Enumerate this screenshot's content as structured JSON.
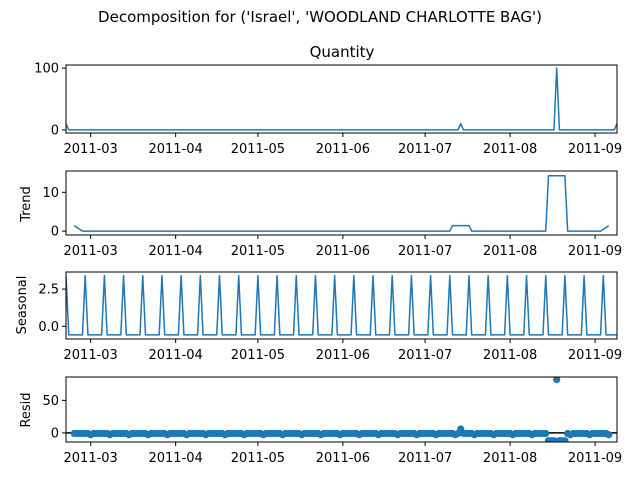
{
  "figure": {
    "suptitle": "Decomposition for ('Israel', 'WOODLAND CHARLOTTE BAG')"
  },
  "colors": {
    "series": "#1f77b4",
    "zero_line": "#000000"
  },
  "x_axis": {
    "start_date": "2011-02-20",
    "end_date": "2011-09-09",
    "ticks": [
      {
        "date": "2011-03-01",
        "label": "2011-03"
      },
      {
        "date": "2011-04-01",
        "label": "2011-04"
      },
      {
        "date": "2011-05-01",
        "label": "2011-05"
      },
      {
        "date": "2011-06-01",
        "label": "2011-06"
      },
      {
        "date": "2011-07-01",
        "label": "2011-07"
      },
      {
        "date": "2011-08-01",
        "label": "2011-08"
      },
      {
        "date": "2011-09-01",
        "label": "2011-09"
      }
    ]
  },
  "chart_data": [
    {
      "type": "line",
      "title": "Quantity",
      "ylabel": "",
      "ylim": [
        -5,
        105
      ],
      "yticks": [
        {
          "value": 0,
          "label": "0"
        },
        {
          "value": 100,
          "label": "100"
        }
      ],
      "baseline": 0,
      "spikes": [
        {
          "date": "2011-02-20",
          "value": 10
        },
        {
          "date": "2011-07-14",
          "value": 10
        },
        {
          "date": "2011-08-18",
          "value": 100
        },
        {
          "date": "2011-09-09",
          "value": 10
        }
      ],
      "series": [
        {
          "values_note": ""
        }
      ]
    },
    {
      "type": "line",
      "title": "",
      "ylabel": "Trend",
      "ylim": [
        -1,
        15.5
      ],
      "yticks": [
        {
          "value": 0,
          "label": "0"
        },
        {
          "value": 10,
          "label": "10"
        }
      ],
      "points": [
        [
          "2011-02-23",
          1.43
        ],
        [
          "2011-02-26",
          0
        ],
        [
          "2011-07-10",
          0
        ],
        [
          "2011-07-11",
          1.43
        ],
        [
          "2011-07-17",
          1.43
        ],
        [
          "2011-07-18",
          0
        ],
        [
          "2011-08-14",
          0
        ],
        [
          "2011-08-15",
          14.29
        ],
        [
          "2011-08-21",
          14.29
        ],
        [
          "2011-08-22",
          0
        ],
        [
          "2011-09-03",
          0
        ],
        [
          "2011-09-06",
          1.43
        ]
      ]
    },
    {
      "type": "line",
      "title": "",
      "ylabel": "Seasonal",
      "ylim": [
        -0.85,
        3.65
      ],
      "yticks": [
        {
          "value": 0,
          "label": "0.0"
        },
        {
          "value": 2.5,
          "label": "2.5"
        }
      ],
      "period_days": 7,
      "pattern": [
        3.4,
        -0.57,
        -0.57,
        -0.57,
        -0.57,
        -0.57,
        -0.57
      ],
      "pattern_start": "2011-02-20"
    },
    {
      "type": "scatter",
      "title": "",
      "ylabel": "Resid",
      "ylim": [
        -14,
        86
      ],
      "yticks": [
        {
          "value": 0,
          "label": "0"
        },
        {
          "value": 50,
          "label": "50"
        }
      ],
      "baseline": 0,
      "series_start": "2011-02-23",
      "series_end": "2011-09-06",
      "typical_values": [
        -0.9,
        -0.9,
        -0.9,
        -0.9,
        -0.9,
        -0.9,
        -2.8
      ],
      "outliers": [
        {
          "date": "2011-07-14",
          "value": 6
        },
        {
          "date": "2011-08-15",
          "value": -12
        },
        {
          "date": "2011-08-16",
          "value": -12
        },
        {
          "date": "2011-08-17",
          "value": -12
        },
        {
          "date": "2011-08-18",
          "value": 82
        },
        {
          "date": "2011-08-19",
          "value": -12
        },
        {
          "date": "2011-08-20",
          "value": -12
        },
        {
          "date": "2011-08-21",
          "value": -12
        }
      ]
    }
  ]
}
